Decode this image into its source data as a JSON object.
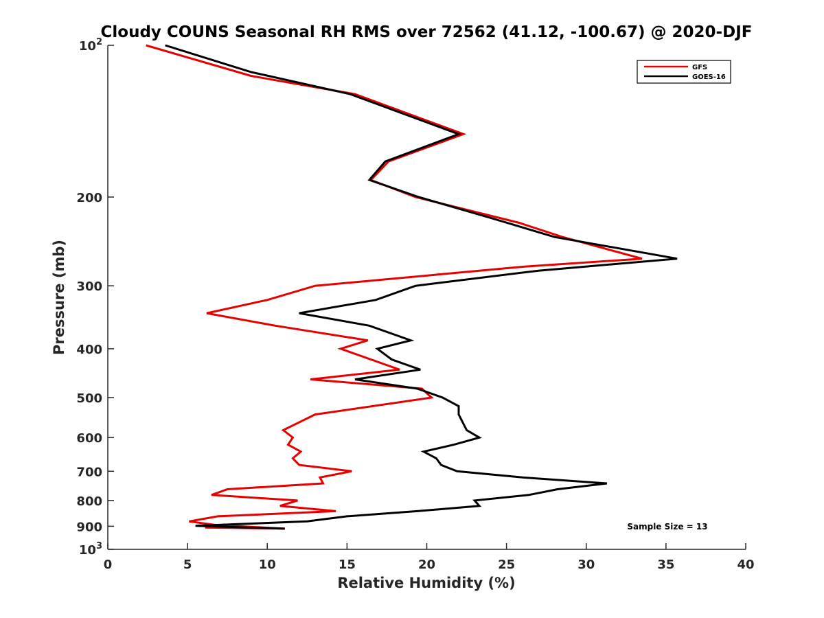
{
  "chart_data": {
    "type": "line",
    "title": "Cloudy COUNS Seasonal RH RMS over 72562 (41.12, -100.67) @ 2020-DJF",
    "xlabel": "Relative Humidity (%)",
    "ylabel": "Pressure (mb)",
    "xlim": [
      0,
      40
    ],
    "ylim": [
      100,
      1000
    ],
    "yscale": "log",
    "yreversed": true,
    "xticks": [
      0,
      5,
      10,
      15,
      20,
      25,
      30,
      35,
      40
    ],
    "xtick_labels": [
      "0",
      "5",
      "10",
      "15",
      "20",
      "25",
      "30",
      "35",
      "40"
    ],
    "yticks": [
      100,
      200,
      300,
      400,
      500,
      600,
      700,
      800,
      900,
      1000
    ],
    "ytick_labels": [
      {
        "base": "10",
        "exp": "2"
      },
      {
        "base": "200",
        "exp": ""
      },
      {
        "base": "300",
        "exp": ""
      },
      {
        "base": "400",
        "exp": ""
      },
      {
        "base": "500",
        "exp": ""
      },
      {
        "base": "600",
        "exp": ""
      },
      {
        "base": "700",
        "exp": ""
      },
      {
        "base": "800",
        "exp": ""
      },
      {
        "base": "900",
        "exp": ""
      },
      {
        "base": "10",
        "exp": "3"
      }
    ],
    "legend_position": "top-right",
    "annotation": "Sample Size = 13",
    "series": [
      {
        "name": "GFS",
        "color": "#e60000",
        "points": [
          [
            2.4,
            100
          ],
          [
            9.0,
            115
          ],
          [
            15.5,
            125
          ],
          [
            22.3,
            150
          ],
          [
            17.6,
            170
          ],
          [
            16.5,
            185
          ],
          [
            19.3,
            200
          ],
          [
            25.8,
            225
          ],
          [
            28.5,
            240
          ],
          [
            33.5,
            265
          ],
          [
            26.0,
            275
          ],
          [
            13.0,
            300
          ],
          [
            10.0,
            320
          ],
          [
            6.2,
            340
          ],
          [
            10.5,
            360
          ],
          [
            16.3,
            385
          ],
          [
            14.6,
            400
          ],
          [
            16.5,
            420
          ],
          [
            18.3,
            440
          ],
          [
            12.7,
            460
          ],
          [
            19.7,
            480
          ],
          [
            20.3,
            500
          ],
          [
            13.0,
            540
          ],
          [
            11.0,
            580
          ],
          [
            11.6,
            600
          ],
          [
            11.3,
            620
          ],
          [
            12.1,
            640
          ],
          [
            11.6,
            660
          ],
          [
            12.0,
            680
          ],
          [
            15.3,
            700
          ],
          [
            13.3,
            720
          ],
          [
            13.5,
            740
          ],
          [
            7.5,
            760
          ],
          [
            6.5,
            780
          ],
          [
            11.9,
            800
          ],
          [
            10.8,
            820
          ],
          [
            14.3,
            840
          ],
          [
            6.9,
            860
          ],
          [
            5.1,
            880
          ],
          [
            6.8,
            895
          ],
          [
            11.1,
            910
          ],
          [
            6.1,
            905
          ]
        ]
      },
      {
        "name": "GOES-16",
        "color": "#000000",
        "points": [
          [
            3.6,
            100
          ],
          [
            9.0,
            113
          ],
          [
            15.2,
            125
          ],
          [
            22.0,
            150
          ],
          [
            17.4,
            170
          ],
          [
            16.4,
            185
          ],
          [
            19.5,
            200
          ],
          [
            24.0,
            220
          ],
          [
            28.0,
            240
          ],
          [
            35.7,
            265
          ],
          [
            27.0,
            280
          ],
          [
            19.3,
            300
          ],
          [
            16.8,
            320
          ],
          [
            12.0,
            340
          ],
          [
            16.4,
            360
          ],
          [
            19.0,
            385
          ],
          [
            16.9,
            400
          ],
          [
            17.8,
            420
          ],
          [
            19.6,
            440
          ],
          [
            15.5,
            460
          ],
          [
            19.4,
            480
          ],
          [
            21.0,
            500
          ],
          [
            22.0,
            520
          ],
          [
            22.0,
            540
          ],
          [
            22.5,
            580
          ],
          [
            23.3,
            600
          ],
          [
            21.7,
            620
          ],
          [
            19.8,
            640
          ],
          [
            20.6,
            660
          ],
          [
            20.9,
            680
          ],
          [
            21.9,
            700
          ],
          [
            26.0,
            720
          ],
          [
            31.3,
            740
          ],
          [
            28.2,
            760
          ],
          [
            26.4,
            780
          ],
          [
            23.0,
            800
          ],
          [
            23.3,
            820
          ],
          [
            19.4,
            840
          ],
          [
            15.0,
            860
          ],
          [
            12.5,
            880
          ],
          [
            5.5,
            898
          ],
          [
            11.1,
            910
          ]
        ]
      }
    ]
  }
}
